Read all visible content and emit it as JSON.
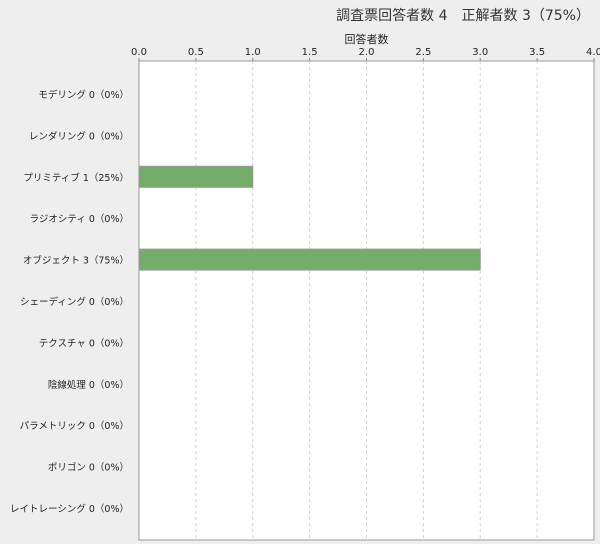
{
  "chart_data": {
    "type": "bar",
    "orientation": "horizontal",
    "title": "調査票回答者数 4　正解者数 3（75%）",
    "xlabel": "回答者数",
    "ylabel": "",
    "xlim": [
      0,
      4.0
    ],
    "xticks": [
      "0.0",
      "0.5",
      "1.0",
      "1.5",
      "2.0",
      "2.5",
      "3.0",
      "3.5",
      "4.0"
    ],
    "grid": true,
    "categories": [
      "モデリング 0（0%）",
      "レンダリング 0（0%）",
      "プリミティブ 1（25%）",
      "ラジオシティ 0（0%）",
      "オブジェクト 3（75%）",
      "シェーディング 0（0%）",
      "テクスチャ 0（0%）",
      "陰線処理 0（0%）",
      "パラメトリック 0（0%）",
      "ポリゴン 0（0%）",
      "レイトレーシング 0（0%）"
    ],
    "values": [
      0,
      0,
      1,
      0,
      3,
      0,
      0,
      0,
      0,
      0,
      0
    ],
    "bar_color": "#73ad69"
  }
}
